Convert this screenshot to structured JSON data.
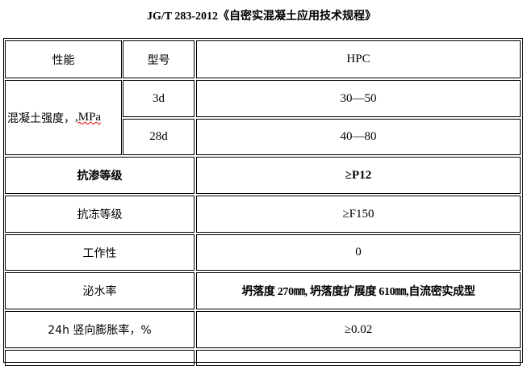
{
  "title": "JG/T 283-2012《自密实混凝土应用技术规程》",
  "table": {
    "header": {
      "property": "性能",
      "model": "型号",
      "value": "HPC"
    },
    "strength": {
      "label_prefix": "混凝土强度，",
      "label_unit": ",MPa",
      "rows": [
        {
          "age": "3d",
          "value": "30—50"
        },
        {
          "age": "28d",
          "value": "40—80"
        }
      ]
    },
    "rows": [
      {
        "property": "抗渗等级",
        "value": "≥P12",
        "bold": true
      },
      {
        "property": "抗冻等级",
        "value": "≥F150"
      },
      {
        "property": "工作性",
        "value": "0"
      },
      {
        "property": "泌水率",
        "value": "坍落度 270㎜, 坍落度扩展度 610㎜,自流密实成型",
        "bold_value": true
      },
      {
        "property": "24h 竖向膨胀率，%",
        "value": "≥0.02"
      }
    ]
  }
}
